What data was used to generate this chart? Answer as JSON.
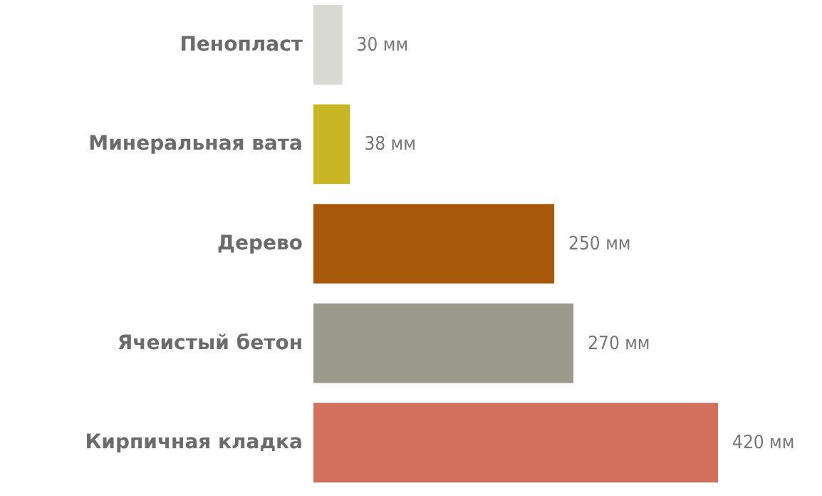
{
  "chart_data": {
    "type": "bar",
    "orientation": "horizontal",
    "categories": [
      "Пенопласт",
      "Минеральная вата",
      "Дерево",
      "Ячеистый бетон",
      "Кирпичная кладка"
    ],
    "values": [
      30,
      38,
      250,
      270,
      420
    ],
    "colors": [
      "#d9d9d4",
      "#c8b624",
      "#a8580a",
      "#9c9a8c",
      "#d2725c"
    ],
    "value_labels": [
      "30 мм",
      "38 мм",
      "250 мм",
      "270 мм",
      "420 мм"
    ],
    "grid": false
  }
}
